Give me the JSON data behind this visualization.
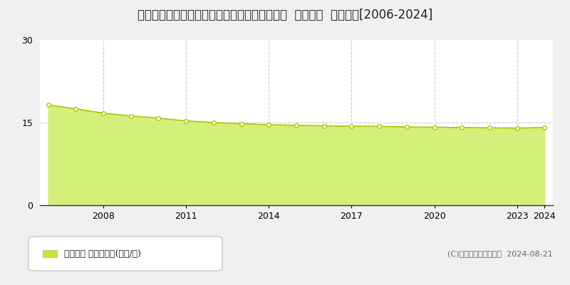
{
  "title": "福井県越前市文京２丁目５０字胴木１４番６外  地価公示  地価推移[2006-2024]",
  "years": [
    2006,
    2007,
    2008,
    2009,
    2010,
    2011,
    2012,
    2013,
    2014,
    2015,
    2016,
    2017,
    2018,
    2019,
    2020,
    2021,
    2022,
    2023,
    2024
  ],
  "values": [
    18.2,
    17.5,
    16.7,
    16.2,
    15.8,
    15.3,
    15.0,
    14.8,
    14.6,
    14.5,
    14.4,
    14.35,
    14.3,
    14.2,
    14.15,
    14.1,
    14.05,
    14.0,
    14.1
  ],
  "fill_color": "#d4f07a",
  "line_color": "#a8c800",
  "marker_color": "#ffffff",
  "marker_edge_color": "#a8c800",
  "bg_color": "#f0f0f0",
  "plot_bg_color": "#ffffff",
  "grid_color": "#cccccc",
  "grid_style": "--",
  "ylim": [
    0,
    30
  ],
  "yticks": [
    0,
    15,
    30
  ],
  "legend_label": "地価公示 平均坪単価(万円/坪)",
  "legend_color": "#c8e632",
  "copyright_text": "(C)土地価格ドットコム  2024-08-21",
  "title_fontsize": 12,
  "tick_fontsize": 9,
  "legend_fontsize": 9,
  "copyright_fontsize": 8,
  "xtick_years": [
    2008,
    2011,
    2014,
    2017,
    2020,
    2023,
    2024
  ],
  "vgrid_years": [
    2008,
    2011,
    2014,
    2017,
    2020,
    2023
  ]
}
